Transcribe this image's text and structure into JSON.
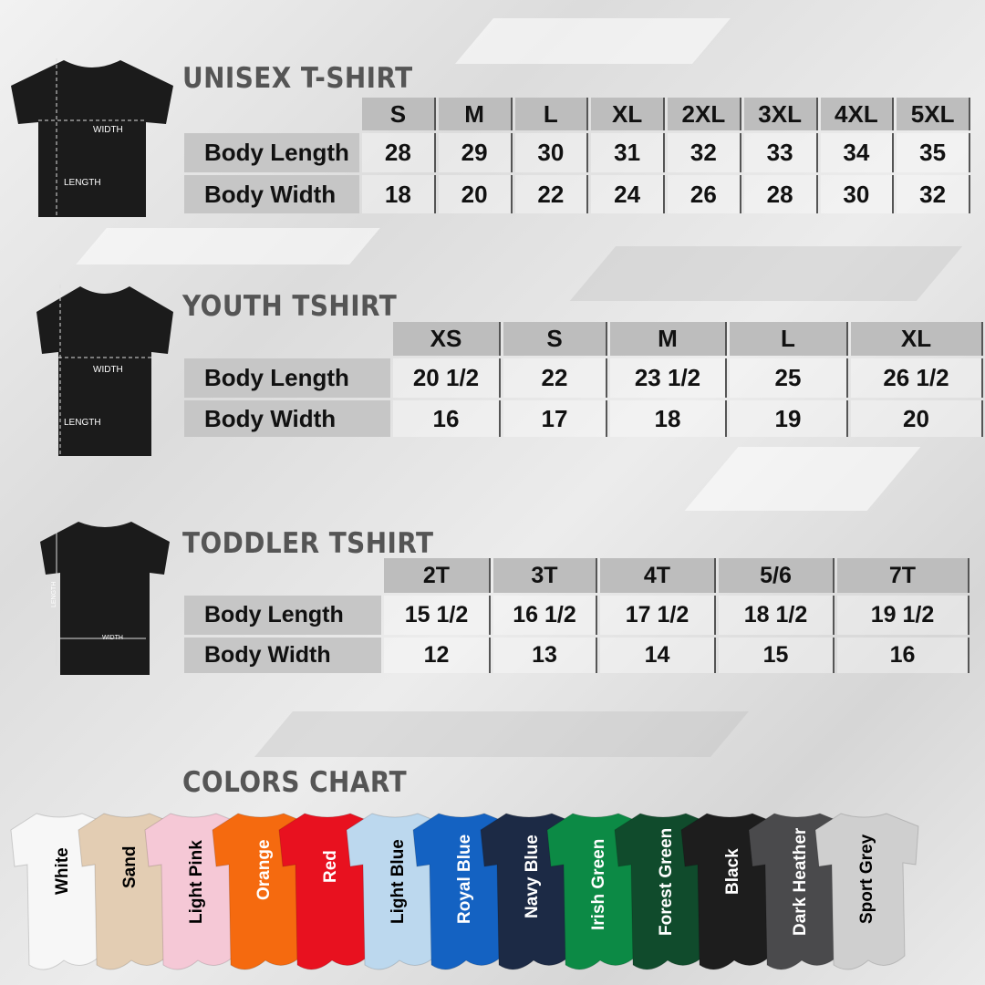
{
  "unisex": {
    "title": "UNISEX T-SHIRT",
    "sizes": [
      "S",
      "M",
      "L",
      "XL",
      "2XL",
      "3XL",
      "4XL",
      "5XL"
    ],
    "rows": [
      {
        "label": "Body Length",
        "values": [
          "28",
          "29",
          "30",
          "31",
          "32",
          "33",
          "34",
          "35"
        ]
      },
      {
        "label": "Body Width",
        "values": [
          "18",
          "20",
          "22",
          "24",
          "26",
          "28",
          "30",
          "32"
        ]
      }
    ],
    "diagram": {
      "width": "WIDTH",
      "length": "LENGTH"
    }
  },
  "youth": {
    "title": "YOUTH TSHIRT",
    "sizes": [
      "XS",
      "S",
      "M",
      "L",
      "XL"
    ],
    "rows": [
      {
        "label": "Body Length",
        "values": [
          "20 1/2",
          "22",
          "23 1/2",
          "25",
          "26 1/2"
        ]
      },
      {
        "label": "Body Width",
        "values": [
          "16",
          "17",
          "18",
          "19",
          "20"
        ]
      }
    ],
    "diagram": {
      "width": "WIDTH",
      "length": "LENGTH"
    }
  },
  "toddler": {
    "title": "TODDLER TSHIRT",
    "sizes": [
      "2T",
      "3T",
      "4T",
      "5/6",
      "7T"
    ],
    "rows": [
      {
        "label": "Body Length",
        "values": [
          "15 1/2",
          "16 1/2",
          "17 1/2",
          "18 1/2",
          "19 1/2"
        ]
      },
      {
        "label": "Body Width",
        "values": [
          "12",
          "13",
          "14",
          "15",
          "16"
        ]
      }
    ],
    "diagram": {
      "width": "WIDTH",
      "length": "LENGTH"
    }
  },
  "colors": {
    "title": "COLORS CHART",
    "items": [
      {
        "name": "White",
        "hex": "#f7f7f7",
        "text": "#000"
      },
      {
        "name": "Sand",
        "hex": "#e3cdb3",
        "text": "#000"
      },
      {
        "name": "Light Pink",
        "hex": "#f5c8d6",
        "text": "#000"
      },
      {
        "name": "Orange",
        "hex": "#f56a0f",
        "text": "#fff"
      },
      {
        "name": "Red",
        "hex": "#e8111f",
        "text": "#fff"
      },
      {
        "name": "Light Blue",
        "hex": "#bcd8ee",
        "text": "#000"
      },
      {
        "name": "Royal Blue",
        "hex": "#1462c2",
        "text": "#fff"
      },
      {
        "name": "Navy Blue",
        "hex": "#1c2a45",
        "text": "#fff"
      },
      {
        "name": "Irish Green",
        "hex": "#0c8a45",
        "text": "#fff"
      },
      {
        "name": "Forest Green",
        "hex": "#104b2c",
        "text": "#fff"
      },
      {
        "name": "Black",
        "hex": "#1d1d1d",
        "text": "#fff"
      },
      {
        "name": "Dark Heather",
        "hex": "#4a4a4c",
        "text": "#fff"
      },
      {
        "name": "Sport Grey",
        "hex": "#cfcfcf",
        "text": "#000"
      }
    ]
  }
}
